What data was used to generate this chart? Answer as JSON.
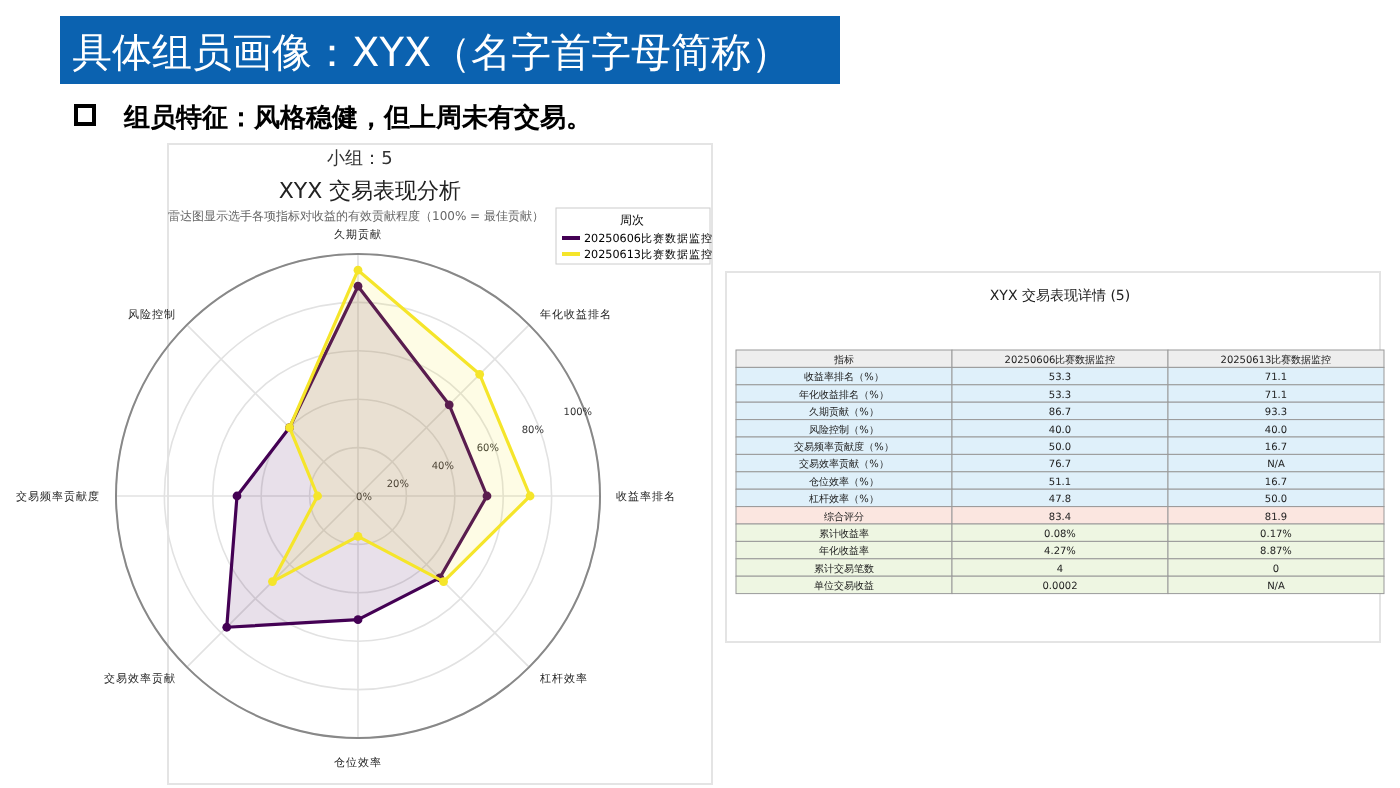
{
  "chart_data": [
    {
      "type": "radar",
      "title": "XYX 交易表现分析",
      "subtitle": "雷达图显示选手各项指标对收益的有效贡献程度（100% = 最佳贡献）",
      "annotations": [
        "具体组员画像：XYX（名字首字母简称）",
        "组员特征：风格稳健，但上周未有交易。",
        "小组：5"
      ],
      "legend_title": "周次",
      "legend": "top right",
      "grid": true,
      "marker": "circle",
      "categories": [
        "久期贡献",
        "年化收益排名",
        "收益率排名",
        "杠杆效率",
        "仓位效率",
        "交易效率贡献",
        "交易频率贡献度",
        "风险控制"
      ],
      "ylim": [
        0,
        100
      ],
      "yticks": [
        {
          "value": 0,
          "label": "0%"
        },
        {
          "value": 20,
          "label": "20%"
        },
        {
          "value": 40,
          "label": "40%"
        },
        {
          "value": 60,
          "label": "60%"
        },
        {
          "value": 80,
          "label": "80%"
        },
        {
          "value": 100,
          "label": "100%"
        }
      ],
      "series": [
        {
          "name": "20250606比赛数据监控",
          "color": "#440154",
          "values": [
            86.7,
            53.3,
            53.3,
            47.8,
            51.1,
            76.7,
            50.0,
            40.0
          ]
        },
        {
          "name": "20250613比赛数据监控",
          "color": "#f5e52a",
          "values": [
            93.3,
            71.1,
            71.1,
            50.0,
            16.7,
            50.0,
            16.7,
            40.0
          ]
        }
      ]
    },
    {
      "type": "other",
      "title": "XYX 交易表现详情 (5)",
      "categories": [
        "指标",
        "20250606比赛数据监控",
        "20250613比赛数据监控"
      ],
      "colors": [
        "#dff0fa",
        "#dff0fa",
        "#dff0fa",
        "#dff0fa",
        "#dff0fa",
        "#dff0fa",
        "#dff0fa",
        "#dff0fa",
        "#fbe6e0",
        "#eef6e2",
        "#eef6e2",
        "#eef6e2",
        "#eef6e2"
      ],
      "annotations": [
        "收益率排名（%）",
        "53.3",
        "71.1",
        "年化收益排名（%）",
        "53.3",
        "71.1",
        "久期贡献（%）",
        "86.7",
        "93.3",
        "风险控制（%）",
        "40.0",
        "40.0",
        "交易频率贡献度（%）",
        "50.0",
        "16.7",
        "交易效率贡献（%）",
        "76.7",
        "N/A",
        "仓位效率（%）",
        "51.1",
        "16.7",
        "杠杆效率（%）",
        "47.8",
        "50.0",
        "综合评分",
        "83.4",
        "81.9",
        "累计收益率",
        "0.08%",
        "0.17%",
        "年化收益率",
        "4.27%",
        "8.87%",
        "累计交易笔数",
        "4",
        "0",
        "单位交易收益",
        "0.0002",
        "N/A"
      ]
    }
  ]
}
